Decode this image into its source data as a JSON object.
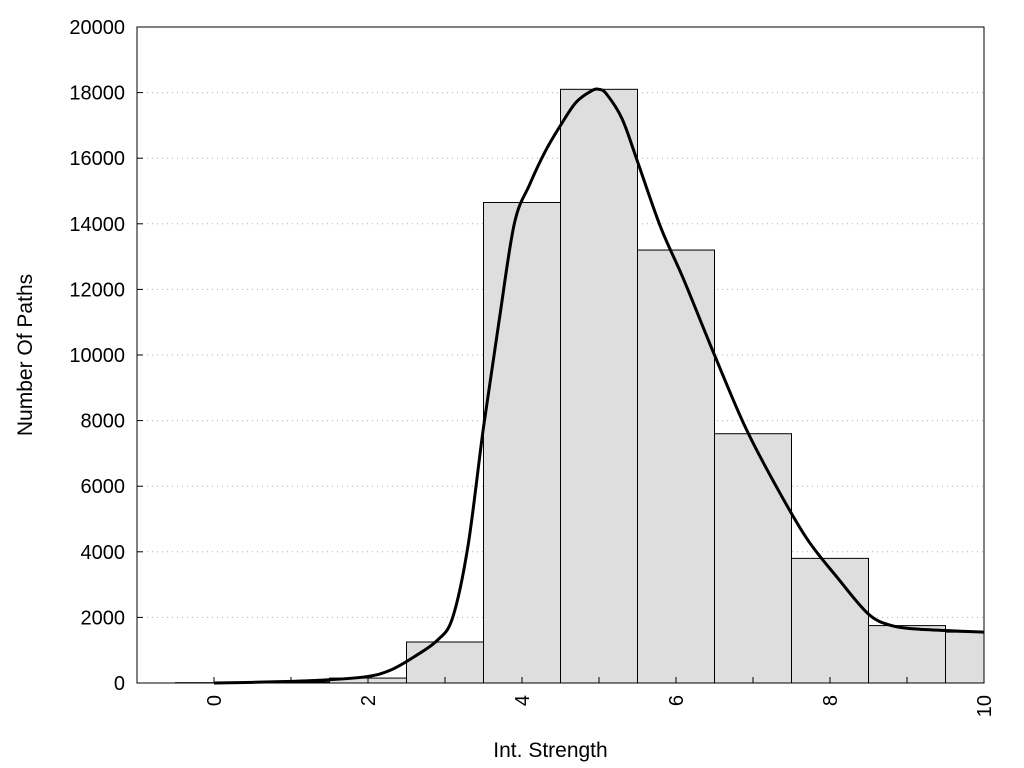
{
  "chart_data": {
    "type": "bar",
    "xlabel": "Int. Strength",
    "ylabel": "Number Of Paths",
    "xlim": [
      -1,
      10
    ],
    "ylim": [
      0,
      20000
    ],
    "xticks": [
      "0",
      "2",
      "4",
      "6",
      "8",
      "10"
    ],
    "yticks": [
      "0",
      "2000",
      "4000",
      "6000",
      "8000",
      "10000",
      "12000",
      "14000",
      "16000",
      "18000",
      "20000"
    ],
    "grid": "horizontal-dotted",
    "bar_color": "#dedede",
    "line_color": "#000000",
    "bins": [
      {
        "x": 0,
        "value": 10
      },
      {
        "x": 1,
        "value": 30
      },
      {
        "x": 2,
        "value": 150
      },
      {
        "x": 3,
        "value": 1250
      },
      {
        "x": 4,
        "value": 14650
      },
      {
        "x": 5,
        "value": 18100
      },
      {
        "x": 6,
        "value": 13200
      },
      {
        "x": 7,
        "value": 7600
      },
      {
        "x": 8,
        "value": 3800
      },
      {
        "x": 9,
        "value": 1750
      },
      {
        "x": 10,
        "value": 1550
      }
    ],
    "curve": {
      "x": [
        0,
        0.5,
        1,
        1.5,
        2,
        2.3,
        2.6,
        2.9,
        3.1,
        3.3,
        3.5,
        3.7,
        3.9,
        4.1,
        4.3,
        4.5,
        4.7,
        4.9,
        5.0,
        5.1,
        5.3,
        5.5,
        5.8,
        6.1,
        6.5,
        6.9,
        7.3,
        7.7,
        8.1,
        8.5,
        8.8,
        9.1,
        9.5,
        10
      ],
      "y": [
        0,
        20,
        50,
        100,
        200,
        400,
        800,
        1300,
        2000,
        4200,
        7800,
        11000,
        14000,
        15200,
        16200,
        17000,
        17700,
        18050,
        18100,
        17950,
        17200,
        15900,
        13900,
        12300,
        10000,
        7800,
        6000,
        4400,
        3200,
        2100,
        1750,
        1650,
        1600,
        1550
      ]
    }
  }
}
